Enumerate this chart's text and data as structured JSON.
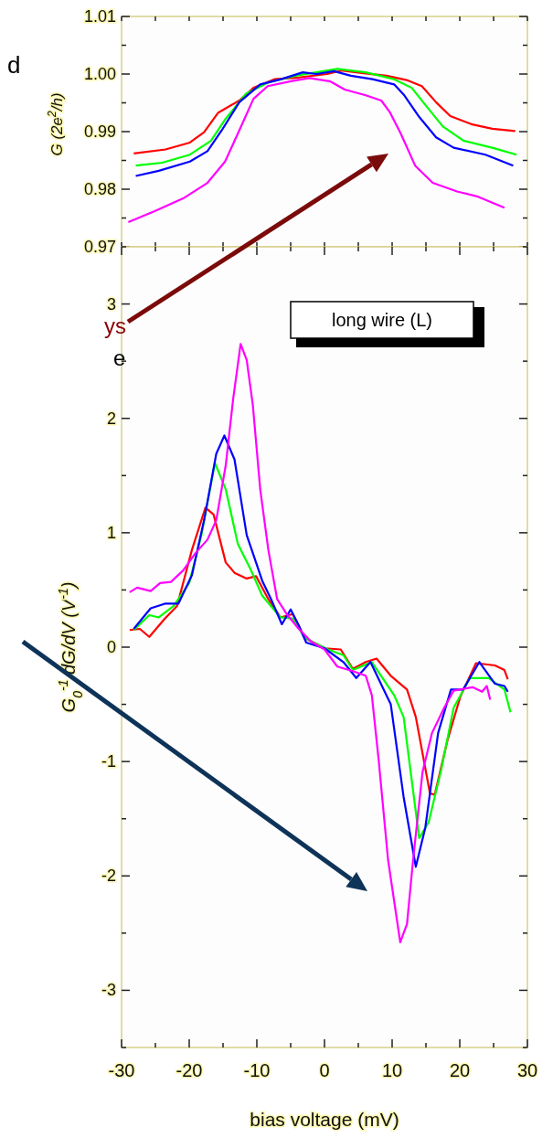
{
  "chart_data": [
    {
      "type": "line",
      "ylabel": "G  (2e$^{2}$/h)",
      "xlim": [
        -30,
        30
      ],
      "ylim": [
        0.97,
        1.01
      ],
      "tick_labels": "y",
      "grid": false,
      "xticks": [
        {
          "value": -30,
          "label": null
        },
        {
          "value": -25,
          "label": null
        },
        {
          "value": -20,
          "label": null
        },
        {
          "value": -15,
          "label": null
        },
        {
          "value": -10,
          "label": null
        },
        {
          "value": -5,
          "label": null
        },
        {
          "value": 0,
          "label": null
        },
        {
          "value": 5,
          "label": null
        },
        {
          "value": 10,
          "label": null
        },
        {
          "value": 15,
          "label": null
        },
        {
          "value": 20,
          "label": null
        },
        {
          "value": 25,
          "label": null
        },
        {
          "value": 30,
          "label": null
        }
      ],
      "yticks": [
        0.97,
        {
          "value": 0.975,
          "label": null
        },
        0.98,
        {
          "value": 0.985,
          "label": null
        },
        0.99,
        {
          "value": 0.995,
          "label": null
        },
        {
          "value": 1.0,
          "label": "1.00"
        },
        {
          "value": 1.005,
          "label": null
        },
        1.01
      ],
      "annotations": [
        "d"
      ],
      "series": [
        {
          "color": "#ff0000",
          "x": [
            -28.2,
            -23.5,
            -19.9,
            -17.8,
            -15.7,
            -12.6,
            -10.5,
            -7.4,
            -3.8,
            0.4,
            2.5,
            6.1,
            9.2,
            12.3,
            14.4,
            16.5,
            18.6,
            21.7,
            24.8,
            28.2
          ],
          "values": [
            0.9862,
            0.9869,
            0.9881,
            0.9899,
            0.9933,
            0.9954,
            0.9976,
            0.9991,
            0.9994,
            1.0,
            1.0006,
            1.0001,
            0.9997,
            0.9989,
            0.9979,
            0.9951,
            0.9927,
            0.9913,
            0.9905,
            0.9901
          ]
        },
        {
          "color": "#00ff00",
          "x": [
            -27.9,
            -24.0,
            -19.9,
            -16.8,
            -14.7,
            -11.6,
            -8.4,
            -4.3,
            1.9,
            6.1,
            10.3,
            12.9,
            15.0,
            17.5,
            20.6,
            24.8,
            28.4
          ],
          "values": [
            0.9841,
            0.9846,
            0.986,
            0.9884,
            0.9921,
            0.9966,
            0.9985,
            0.9997,
            1.0009,
            1.0003,
            0.9991,
            0.9976,
            0.9945,
            0.9909,
            0.9884,
            0.9872,
            0.986
          ]
        },
        {
          "color": "#0000ff",
          "x": [
            -27.9,
            -24.5,
            -19.9,
            -17.3,
            -15.2,
            -12.6,
            -9.5,
            -6.4,
            -3.2,
            -1.2,
            1.4,
            3.9,
            7.1,
            10.3,
            11.8,
            13.9,
            16.5,
            19.1,
            23.8,
            27.9
          ],
          "values": [
            0.9823,
            0.9832,
            0.9848,
            0.9866,
            0.9902,
            0.9951,
            0.9982,
            0.9991,
            1.0003,
            1.0,
            1.0005,
            0.9997,
            0.9991,
            0.9982,
            0.9963,
            0.9927,
            0.989,
            0.9872,
            0.986,
            0.9841
          ]
        },
        {
          "color": "#ff00ff",
          "x": [
            -29.0,
            -25.1,
            -20.9,
            -17.3,
            -14.7,
            -12.6,
            -10.5,
            -8.4,
            -4.8,
            -2.2,
            0.9,
            3.0,
            6.1,
            8.4,
            9.7,
            11.3,
            13.4,
            16.0,
            19.6,
            22.7,
            26.6
          ],
          "values": [
            0.9743,
            0.9762,
            0.9784,
            0.9811,
            0.9848,
            0.9902,
            0.9957,
            0.9979,
            0.9988,
            0.9993,
            0.9987,
            0.9973,
            0.9963,
            0.9954,
            0.9933,
            0.9896,
            0.9841,
            0.9811,
            0.9796,
            0.9787,
            0.9768
          ]
        }
      ]
    },
    {
      "type": "line",
      "xlabel": "bias voltage (mV)",
      "ylabel": "G$_{0}$$^{-1}$ dG/dV  (V$^{-1}$)",
      "xlim": [
        -30,
        30
      ],
      "ylim": [
        -3.5,
        3.5
      ],
      "grid": false,
      "xticks": [
        -30,
        {
          "value": -25,
          "label": null
        },
        -20,
        {
          "value": -15,
          "label": null
        },
        -10,
        {
          "value": -5,
          "label": null
        },
        0,
        {
          "value": 5,
          "label": null
        },
        10,
        {
          "value": 15,
          "label": null
        },
        20,
        {
          "value": 25,
          "label": null
        },
        30
      ],
      "yticks": [
        {
          "value": -3.5,
          "label": null
        },
        -3,
        {
          "value": -2.5,
          "label": null
        },
        -2,
        {
          "value": -1.5,
          "label": null
        },
        -1,
        {
          "value": -0.5,
          "label": null
        },
        0,
        {
          "value": 0.5,
          "label": null
        },
        1,
        {
          "value": 1.5,
          "label": null
        },
        2,
        {
          "value": 2.5,
          "label": null
        },
        3,
        {
          "value": 3.5,
          "label": null
        }
      ],
      "annotations": [
        "long wire (L)",
        "ys",
        "e"
      ],
      "series": [
        {
          "color": "#ff0000",
          "x": [
            -28.8,
            -27.3,
            -25.9,
            -23.6,
            -21.8,
            -19.6,
            -17.6,
            -16.4,
            -14.6,
            -13.3,
            -11.5,
            -10.1,
            -8.3,
            -6.5,
            -4.7,
            -2.9,
            0.0,
            2.4,
            4.2,
            6.1,
            7.7,
            9.8,
            12.2,
            13.5,
            15.6,
            16.3,
            18.2,
            20.1,
            22.4,
            25.2,
            26.6,
            27.1
          ],
          "values": [
            0.15,
            0.16,
            0.09,
            0.25,
            0.36,
            0.85,
            1.22,
            1.16,
            0.74,
            0.65,
            0.6,
            0.62,
            0.42,
            0.26,
            0.29,
            0.08,
            -0.01,
            -0.02,
            -0.19,
            -0.13,
            -0.1,
            -0.25,
            -0.37,
            -0.61,
            -1.28,
            -1.29,
            -0.81,
            -0.43,
            -0.14,
            -0.16,
            -0.2,
            -0.28
          ]
        },
        {
          "color": "#00ff00",
          "x": [
            -28.2,
            -25.9,
            -24.5,
            -22.3,
            -20.0,
            -18.2,
            -16.2,
            -14.6,
            -12.8,
            -11.0,
            -9.2,
            -6.5,
            -4.7,
            -2.9,
            0.5,
            2.8,
            4.2,
            7.0,
            10.3,
            11.7,
            14.0,
            15.4,
            17.3,
            19.1,
            21.5,
            24.3,
            26.6,
            27.5
          ],
          "values": [
            0.15,
            0.28,
            0.26,
            0.36,
            0.56,
            0.98,
            1.61,
            1.38,
            0.9,
            0.69,
            0.45,
            0.26,
            0.25,
            0.08,
            -0.02,
            -0.07,
            -0.2,
            -0.13,
            -0.42,
            -0.61,
            -1.67,
            -1.53,
            -1.06,
            -0.53,
            -0.27,
            -0.27,
            -0.37,
            -0.57
          ]
        },
        {
          "color": "#0000ff",
          "x": [
            -28.2,
            -25.7,
            -23.6,
            -21.6,
            -19.6,
            -17.8,
            -16.0,
            -14.8,
            -13.3,
            -11.5,
            -9.2,
            -7.9,
            -6.3,
            -5.0,
            -3.8,
            -2.7,
            0.0,
            2.8,
            4.7,
            6.8,
            9.8,
            11.7,
            13.5,
            14.9,
            16.8,
            18.7,
            20.5,
            22.9,
            25.2,
            26.6,
            27.1
          ],
          "values": [
            0.16,
            0.34,
            0.38,
            0.38,
            0.63,
            1.11,
            1.69,
            1.85,
            1.64,
            0.98,
            0.58,
            0.42,
            0.2,
            0.33,
            0.19,
            0.04,
            -0.01,
            -0.13,
            -0.27,
            -0.13,
            -0.5,
            -1.31,
            -1.92,
            -1.58,
            -0.75,
            -0.37,
            -0.37,
            -0.13,
            -0.32,
            -0.34,
            -0.39
          ]
        },
        {
          "color": "#ff00ff",
          "x": [
            -28.8,
            -27.7,
            -25.7,
            -24.3,
            -22.7,
            -20.9,
            -19.1,
            -17.3,
            -16.0,
            -14.6,
            -13.5,
            -12.4,
            -11.5,
            -10.6,
            -9.5,
            -8.3,
            -7.0,
            -5.6,
            -3.8,
            -2.0,
            0.0,
            1.9,
            4.2,
            6.1,
            7.0,
            8.0,
            9.4,
            11.2,
            12.2,
            13.1,
            14.5,
            15.9,
            17.7,
            19.1,
            21.9,
            23.3,
            24.0,
            24.5
          ],
          "values": [
            0.48,
            0.52,
            0.49,
            0.56,
            0.57,
            0.67,
            0.82,
            0.94,
            1.11,
            1.59,
            2.17,
            2.65,
            2.51,
            2.12,
            1.38,
            0.85,
            0.42,
            0.29,
            0.16,
            0.05,
            -0.02,
            -0.17,
            -0.21,
            -0.25,
            -0.42,
            -0.98,
            -1.86,
            -2.58,
            -2.42,
            -1.86,
            -1.09,
            -0.75,
            -0.53,
            -0.38,
            -0.35,
            -0.39,
            -0.34,
            -0.46
          ]
        }
      ]
    }
  ]
}
